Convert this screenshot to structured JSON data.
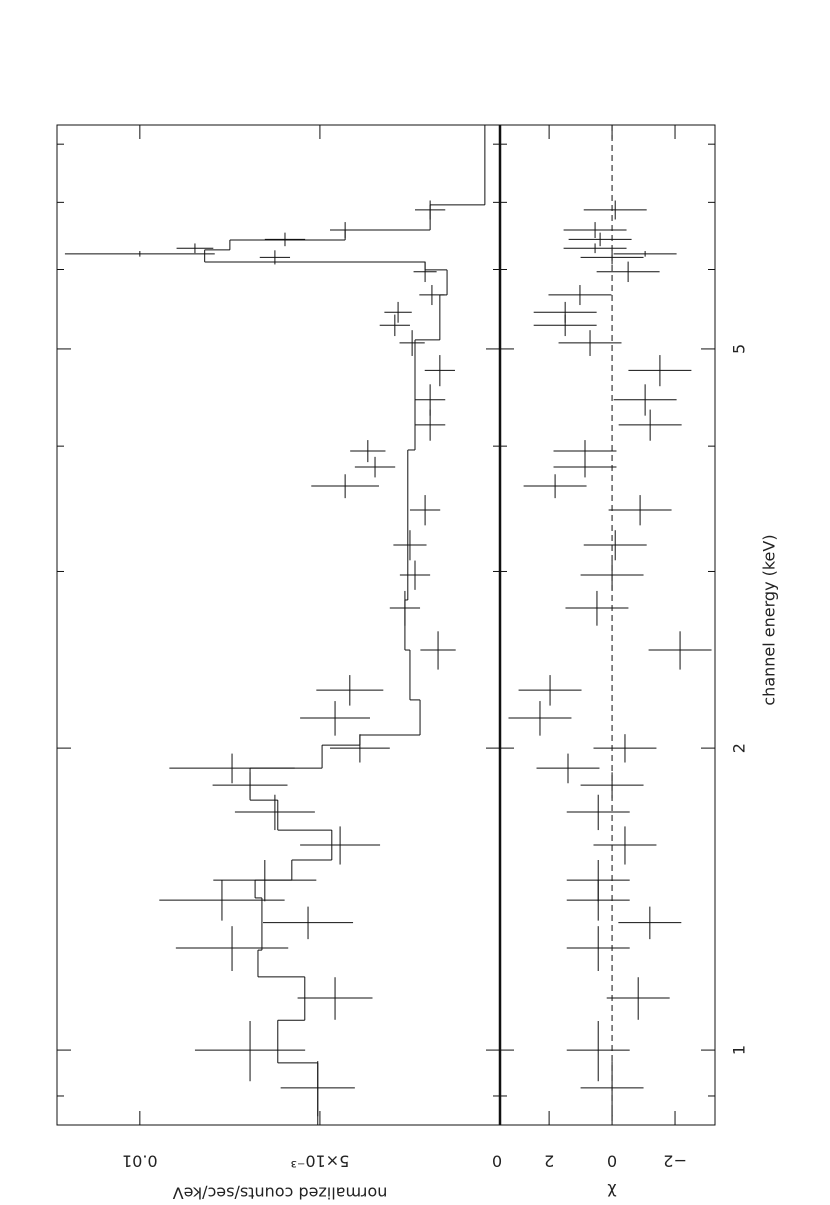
{
  "chart_data": [
    {
      "type": "errorbar",
      "xscale": "log",
      "ylabel": "normalized counts/sec/keV",
      "xlim": [
        0.842,
        8.36
      ],
      "ylim": [
        0,
        0.0123
      ],
      "xticks": [
        1,
        2,
        5
      ],
      "xminor_ticks": [
        0.9,
        3,
        4,
        6,
        7,
        8
      ],
      "yticks": [
        0,
        {
          "value": 0.005,
          "label": "5×10⁻³"
        },
        0.01
      ],
      "x": [
        0.917,
        1.0,
        1.127,
        1.264,
        1.34,
        1.411,
        1.477,
        1.601,
        1.727,
        1.837,
        1.91,
        2.0,
        2.143,
        2.285,
        2.505,
        2.759,
        2.976,
        3.188,
        3.455,
        3.65,
        3.813,
        3.956,
        4.2,
        4.45,
        4.76,
        5.07,
        5.28,
        5.44,
        5.66,
        5.97,
        6.17,
        6.22,
        6.3,
        6.43,
        6.57,
        6.88
      ],
      "xerr": [
        0.058,
        0.069,
        0.055,
        0.065,
        0.05,
        0.065,
        0.07,
        0.07,
        0.07,
        0.055,
        0.065,
        0.065,
        0.085,
        0.08,
        0.11,
        0.11,
        0.1,
        0.11,
        0.12,
        0.1,
        0.09,
        0.1,
        0.15,
        0.16,
        0.17,
        0.15,
        0.13,
        0.13,
        0.13,
        0.14,
        0.1,
        0.04,
        0.07,
        0.1,
        0.12,
        0.15
      ],
      "values": [
        0.00506,
        0.00694,
        0.00458,
        0.00744,
        0.00533,
        0.00772,
        0.00653,
        0.00444,
        0.00625,
        0.00694,
        0.00744,
        0.00389,
        0.00458,
        0.00417,
        0.00172,
        0.00264,
        0.00236,
        0.0025,
        0.00208,
        0.0043,
        0.00347,
        0.00367,
        0.00194,
        0.00194,
        0.00167,
        0.00244,
        0.00292,
        0.00283,
        0.00189,
        0.00208,
        0.00625,
        0.01,
        0.00847,
        0.00597,
        0.0043,
        0.00194
      ],
      "errors": [
        0.00103,
        0.00153,
        0.00104,
        0.00156,
        0.00125,
        0.00174,
        0.00143,
        0.00111,
        0.00111,
        0.00104,
        0.00174,
        0.00083,
        0.00097,
        0.00093,
        0.00049,
        0.00042,
        0.00042,
        0.00046,
        0.00042,
        0.00094,
        0.00056,
        0.00049,
        0.00042,
        0.00042,
        0.00042,
        0.00035,
        0.00042,
        0.00038,
        0.00035,
        0.00032,
        0.00042,
        0.00208,
        0.00051,
        0.00056,
        0.00042,
        0.00042
      ],
      "model": {
        "edges": [
          0.842,
          0.971,
          1.071,
          1.183,
          1.258,
          1.418,
          1.477,
          1.547,
          1.657,
          1.775,
          1.91,
          2.014,
          2.061,
          2.234,
          2.505,
          2.81,
          3.965,
          5.105,
          5.66,
          5.995,
          6.105,
          6.277,
          6.42,
          6.57,
          6.96,
          8.36
        ],
        "values": [
          0.00506,
          0.00617,
          0.00542,
          0.00672,
          0.00661,
          0.0068,
          0.00578,
          0.00467,
          0.00617,
          0.00694,
          0.00494,
          0.00389,
          0.00222,
          0.0025,
          0.00264,
          0.00256,
          0.00236,
          0.00167,
          0.00147,
          0.00208,
          0.0082,
          0.0075,
          0.0043,
          0.00194,
          0.00042
        ]
      }
    },
    {
      "type": "residuals",
      "xscale": "log",
      "xlabel": "channel energy (keV)",
      "ylabel": "χ",
      "xlim": [
        0.842,
        8.36
      ],
      "ylim": [
        -3.27,
        3.56
      ],
      "xticks": [
        1,
        2,
        5
      ],
      "xminor_ticks": [
        0.9,
        3,
        4,
        6,
        7,
        8
      ],
      "yticks": [
        {
          "value": -2,
          "label": "−2"
        },
        0,
        2
      ],
      "reference_line": 0,
      "values": [
        0.0,
        0.44,
        -0.83,
        0.44,
        -1.2,
        0.44,
        0.44,
        -0.41,
        0.44,
        0.0,
        1.4,
        -0.41,
        2.29,
        1.97,
        -2.16,
        0.48,
        0.0,
        -0.1,
        -0.89,
        1.81,
        0.86,
        0.86,
        -1.21,
        -1.05,
        -1.52,
        0.7,
        1.49,
        1.49,
        1.02,
        -0.51,
        0.0,
        -1.05,
        0.54,
        0.38,
        0.54,
        -0.1
      ],
      "errors": [
        1,
        1,
        1,
        1,
        1,
        1,
        1,
        1,
        1,
        1,
        1,
        1,
        1,
        1,
        1,
        1,
        1,
        1,
        1,
        1,
        1,
        1,
        1,
        1,
        1,
        1,
        1,
        1,
        1,
        1,
        1,
        1,
        1,
        1,
        1,
        1
      ]
    }
  ]
}
